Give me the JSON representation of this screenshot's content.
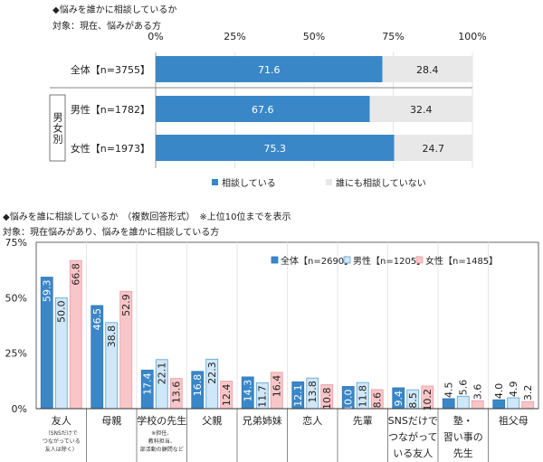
{
  "chart_data": [
    {
      "type": "bar",
      "orientation": "horizontal",
      "stacked": true,
      "title": "◆悩みを誰かに相談しているか",
      "subtitle": "対象：現在、悩みがある方",
      "xlim": [
        0,
        100
      ],
      "x_ticks": [
        "0%",
        "25%",
        "50%",
        "75%",
        "100%"
      ],
      "group_label": "男女別",
      "categories": [
        "全体【n=3755】",
        "男性【n=1782】",
        "女性【n=1973】"
      ],
      "series": [
        {
          "name": "相談している",
          "color": "#3a87c8",
          "values": [
            71.6,
            67.6,
            75.3
          ]
        },
        {
          "name": "誰にも相談していない",
          "color": "#e8e8e8",
          "values": [
            28.4,
            32.4,
            24.7
          ]
        }
      ],
      "legend": "bottom"
    },
    {
      "type": "bar",
      "title": "◆悩みを誰に相談しているか　（複数回答形式）　※上位10位までを表示",
      "subtitle": "対象：現在悩みがあり、悩みを誰かに相談している方",
      "ylim": [
        0,
        75
      ],
      "y_ticks": [
        "0%",
        "25%",
        "50%",
        "75%"
      ],
      "categories": [
        "友人",
        "母親",
        "学校の先生",
        "父親",
        "兄弟姉妹",
        "恋人",
        "先輩",
        "SNSだけでつながっている友人",
        "塾・習い事の先生",
        "祖父母"
      ],
      "category_notes": [
        "（SNSだけでつながっている友人は除く）",
        "",
        "※担任、教科担当、部活動の顧問など",
        "",
        "",
        "",
        "",
        "",
        "",
        ""
      ],
      "series": [
        {
          "name": "全体【n=2690】",
          "color": "#3a87c8",
          "values": [
            59.3,
            46.5,
            17.4,
            16.8,
            14.3,
            12.1,
            10.0,
            9.4,
            4.5,
            4.0
          ]
        },
        {
          "name": "男性【n=1205】",
          "color": "#cfe7f8",
          "values": [
            50.0,
            38.8,
            22.1,
            22.3,
            11.7,
            13.8,
            11.8,
            8.5,
            5.6,
            4.9
          ]
        },
        {
          "name": "女性【n=1485】",
          "color": "#f8c6c9",
          "values": [
            66.8,
            52.9,
            13.6,
            12.4,
            16.4,
            10.8,
            8.6,
            10.2,
            3.6,
            3.2
          ]
        }
      ],
      "legend": "top-right"
    }
  ]
}
